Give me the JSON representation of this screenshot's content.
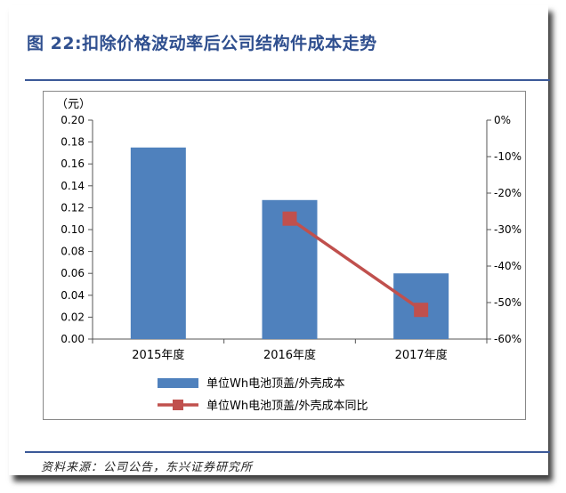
{
  "figure": {
    "title": "图 22:扣除价格波动率后公司结构件成本走势",
    "source": "资料来源：公司公告，东兴证券研究所"
  },
  "colors": {
    "bar": "#4f81bd",
    "line": "#c0504d",
    "title": "#2f4f8f",
    "rule": "#3b5998"
  },
  "chart_data": {
    "type": "bar",
    "categories": [
      "2015年度",
      "2016年度",
      "2017年度"
    ],
    "yunit": "（元）",
    "ylim": [
      0,
      0.2
    ],
    "yticks": [
      "0.20",
      "0.18",
      "0.16",
      "0.14",
      "0.12",
      "0.10",
      "0.08",
      "0.06",
      "0.04",
      "0.02",
      "0.00"
    ],
    "y2lim": [
      -60,
      0
    ],
    "y2ticks": [
      "0%",
      "-10%",
      "-20%",
      "-30%",
      "-40%",
      "-50%",
      "-60%"
    ],
    "series": [
      {
        "name": "单位Wh电池顶盖/外壳成本",
        "type": "bar",
        "axis": "left",
        "values": [
          0.175,
          0.127,
          0.06
        ]
      },
      {
        "name": "单位Wh电池顶盖/外壳成本同比",
        "type": "line",
        "axis": "right",
        "values": [
          null,
          -27,
          -52
        ]
      }
    ],
    "legend": "bottom",
    "grid": false
  }
}
